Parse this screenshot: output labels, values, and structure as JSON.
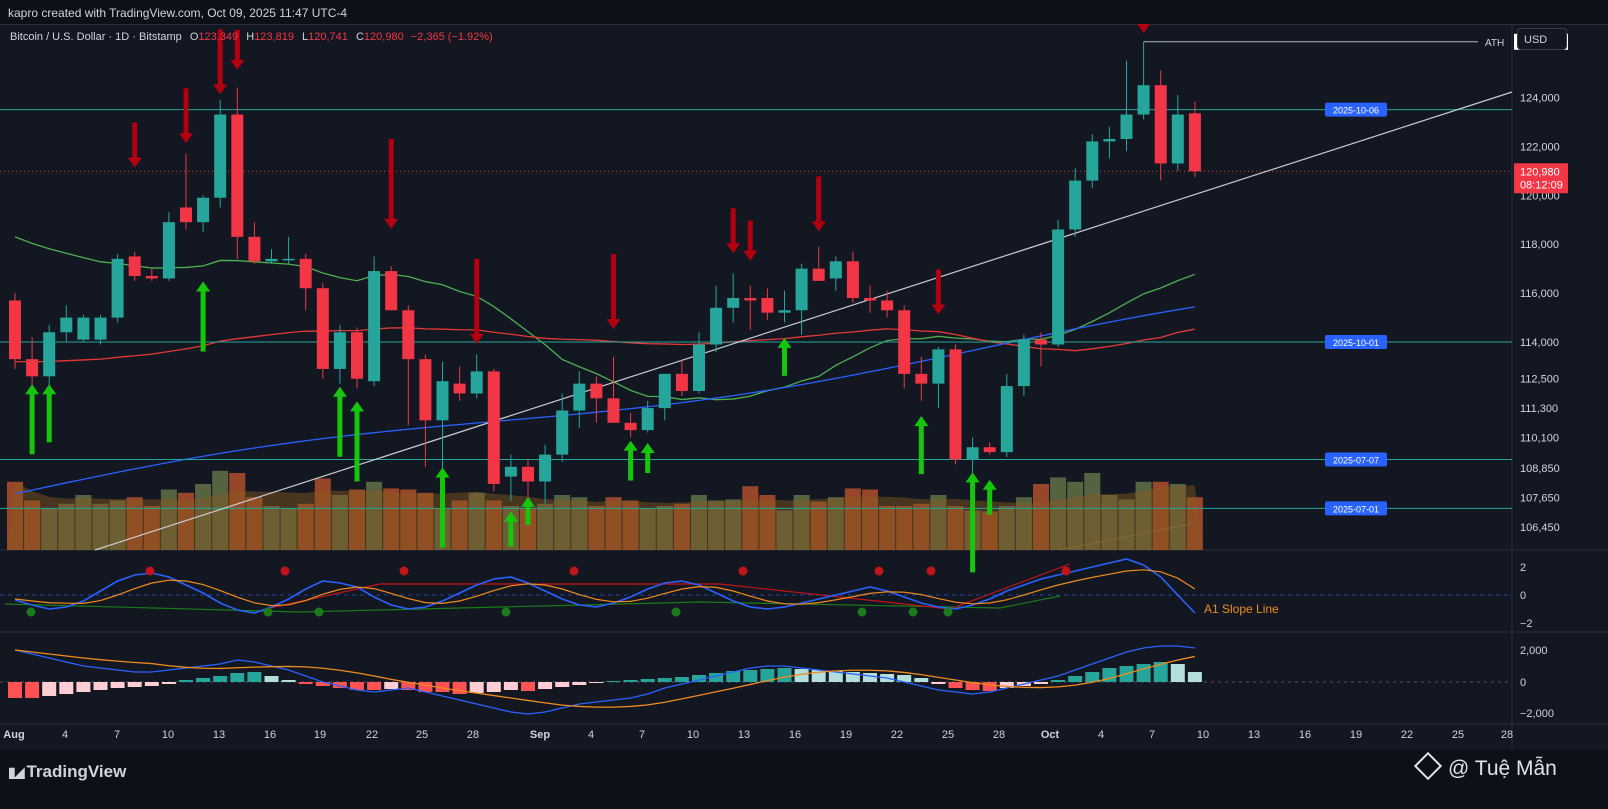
{
  "header": {
    "created_by": "kapro created with TradingView.com, Oct 09, 2025 11:47 UTC-4"
  },
  "legend": {
    "symbol": "Bitcoin / U.S. Dollar · 1D · Bitstamp",
    "o_label": "O",
    "o": "123,349",
    "h_label": "H",
    "h": "123,819",
    "l_label": "L",
    "l": "120,741",
    "c_label": "C",
    "c": "120,980",
    "change": "−2,365 (−1.92%)"
  },
  "currency_button": "USD",
  "ath": {
    "label": "ATH",
    "value": "126,272"
  },
  "current_price": {
    "value": "120,980",
    "countdown": "08:12:09"
  },
  "level_labels": [
    {
      "label": "2025-10-06",
      "price": 123500
    },
    {
      "label": "2025-10-01",
      "price": 114000
    },
    {
      "label": "2025-07-07",
      "price": 109200
    },
    {
      "label": "2025-07-01",
      "price": 107200
    }
  ],
  "price_axis_ticks": [
    "124,000",
    "122,000",
    "120,000",
    "118,000",
    "116,000",
    "114,000",
    "112,500",
    "111,300",
    "110,100",
    "108,850",
    "107,650",
    "106,450"
  ],
  "osc_axis_ticks": [
    "2",
    "0",
    "−2"
  ],
  "macd_axis_ticks": [
    "2,000",
    "0",
    "−2,000"
  ],
  "osc_label": "A1 Slope Line",
  "x_axis_ticks": [
    "Aug",
    "4",
    "7",
    "10",
    "13",
    "16",
    "19",
    "22",
    "25",
    "28",
    "Sep",
    "4",
    "7",
    "10",
    "13",
    "16",
    "19",
    "22",
    "25",
    "28",
    "Oct",
    "4",
    "7",
    "10",
    "13",
    "16",
    "19",
    "22",
    "25",
    "28"
  ],
  "colors": {
    "up": "#26a69a",
    "down": "#f23645",
    "blue_label": "#2962ff",
    "arrow_down": "#b2000f",
    "arrow_up": "#16c60c"
  },
  "footer": {
    "brand": "TradingView",
    "credit": "@ Tuệ Mẫn"
  },
  "chart_data": {
    "type": "candlestick",
    "title": "Bitcoin / U.S. Dollar · 1D · Bitstamp",
    "ylim": [
      105500,
      127000
    ],
    "candles": [
      {
        "o": 115700,
        "h": 116000,
        "l": 112900,
        "c": 113300
      },
      {
        "o": 113300,
        "h": 114200,
        "l": 112000,
        "c": 112600
      },
      {
        "o": 112600,
        "h": 114700,
        "l": 112200,
        "c": 114400
      },
      {
        "o": 114400,
        "h": 115500,
        "l": 114000,
        "c": 115000
      },
      {
        "o": 114100,
        "h": 115100,
        "l": 114000,
        "c": 115000
      },
      {
        "o": 114100,
        "h": 115100,
        "l": 113900,
        "c": 115000
      },
      {
        "o": 115000,
        "h": 117600,
        "l": 114800,
        "c": 117400
      },
      {
        "o": 117500,
        "h": 117700,
        "l": 116500,
        "c": 116700
      },
      {
        "o": 116700,
        "h": 117000,
        "l": 116500,
        "c": 116600
      },
      {
        "o": 116600,
        "h": 119300,
        "l": 116500,
        "c": 118900
      },
      {
        "o": 119500,
        "h": 121700,
        "l": 118600,
        "c": 118900
      },
      {
        "o": 118900,
        "h": 120000,
        "l": 118500,
        "c": 119900
      },
      {
        "o": 119900,
        "h": 123900,
        "l": 119500,
        "c": 123300
      },
      {
        "o": 123300,
        "h": 124400,
        "l": 117400,
        "c": 118300
      },
      {
        "o": 118300,
        "h": 118900,
        "l": 117200,
        "c": 117300
      },
      {
        "o": 117300,
        "h": 117800,
        "l": 117200,
        "c": 117400
      },
      {
        "o": 117400,
        "h": 118300,
        "l": 117200,
        "c": 117400
      },
      {
        "o": 117400,
        "h": 117600,
        "l": 115300,
        "c": 116200
      },
      {
        "o": 116200,
        "h": 116400,
        "l": 112500,
        "c": 112900
      },
      {
        "o": 112900,
        "h": 114700,
        "l": 112300,
        "c": 114400
      },
      {
        "o": 114400,
        "h": 114600,
        "l": 112100,
        "c": 112500
      },
      {
        "o": 112400,
        "h": 117500,
        "l": 112200,
        "c": 116900
      },
      {
        "o": 116900,
        "h": 117100,
        "l": 115300,
        "c": 115300
      },
      {
        "o": 115300,
        "h": 115500,
        "l": 110600,
        "c": 113300
      },
      {
        "o": 113300,
        "h": 113500,
        "l": 108900,
        "c": 110800
      },
      {
        "o": 110800,
        "h": 113200,
        "l": 108500,
        "c": 112400
      },
      {
        "o": 112300,
        "h": 113000,
        "l": 111600,
        "c": 111900
      },
      {
        "o": 111900,
        "h": 113500,
        "l": 111700,
        "c": 112800
      },
      {
        "o": 112800,
        "h": 112900,
        "l": 107900,
        "c": 108200
      },
      {
        "o": 108500,
        "h": 109400,
        "l": 107500,
        "c": 108900
      },
      {
        "o": 108900,
        "h": 109200,
        "l": 107500,
        "c": 108300
      },
      {
        "o": 108300,
        "h": 109800,
        "l": 107400,
        "c": 109400
      },
      {
        "o": 109400,
        "h": 111900,
        "l": 109100,
        "c": 111200
      },
      {
        "o": 111200,
        "h": 112800,
        "l": 110500,
        "c": 112300
      },
      {
        "o": 112300,
        "h": 112600,
        "l": 110700,
        "c": 111700
      },
      {
        "o": 111700,
        "h": 113400,
        "l": 110800,
        "c": 110700
      },
      {
        "o": 110700,
        "h": 111100,
        "l": 110100,
        "c": 110400
      },
      {
        "o": 110400,
        "h": 111600,
        "l": 110300,
        "c": 111300
      },
      {
        "o": 111300,
        "h": 112700,
        "l": 110800,
        "c": 112700
      },
      {
        "o": 112700,
        "h": 113300,
        "l": 111800,
        "c": 112000
      },
      {
        "o": 112000,
        "h": 114400,
        "l": 111900,
        "c": 113900
      },
      {
        "o": 113900,
        "h": 116300,
        "l": 113600,
        "c": 115400
      },
      {
        "o": 115400,
        "h": 116800,
        "l": 114800,
        "c": 115800
      },
      {
        "o": 115800,
        "h": 116300,
        "l": 114500,
        "c": 115700
      },
      {
        "o": 115800,
        "h": 116200,
        "l": 114900,
        "c": 115200
      },
      {
        "o": 115200,
        "h": 116100,
        "l": 114800,
        "c": 115300
      },
      {
        "o": 115300,
        "h": 117200,
        "l": 114300,
        "c": 117000
      },
      {
        "o": 117000,
        "h": 117900,
        "l": 116500,
        "c": 116500
      },
      {
        "o": 116600,
        "h": 117500,
        "l": 116100,
        "c": 117300
      },
      {
        "o": 117300,
        "h": 117700,
        "l": 115600,
        "c": 115800
      },
      {
        "o": 115800,
        "h": 116300,
        "l": 115200,
        "c": 115700
      },
      {
        "o": 115700,
        "h": 116100,
        "l": 115000,
        "c": 115300
      },
      {
        "o": 115300,
        "h": 115500,
        "l": 112100,
        "c": 112700
      },
      {
        "o": 112700,
        "h": 113400,
        "l": 111600,
        "c": 112300
      },
      {
        "o": 112300,
        "h": 113800,
        "l": 111300,
        "c": 113700
      },
      {
        "o": 113700,
        "h": 113900,
        "l": 109000,
        "c": 109200
      },
      {
        "o": 109200,
        "h": 110100,
        "l": 108600,
        "c": 109700
      },
      {
        "o": 109700,
        "h": 109900,
        "l": 109400,
        "c": 109500
      },
      {
        "o": 109500,
        "h": 112700,
        "l": 109300,
        "c": 112200
      },
      {
        "o": 112200,
        "h": 114300,
        "l": 111800,
        "c": 114100
      },
      {
        "o": 114100,
        "h": 114400,
        "l": 113000,
        "c": 113900
      },
      {
        "o": 113900,
        "h": 119000,
        "l": 113800,
        "c": 118600
      },
      {
        "o": 118600,
        "h": 121100,
        "l": 118300,
        "c": 120600
      },
      {
        "o": 120600,
        "h": 122500,
        "l": 120300,
        "c": 122200
      },
      {
        "o": 122200,
        "h": 122800,
        "l": 121500,
        "c": 122300
      },
      {
        "o": 122300,
        "h": 125500,
        "l": 121800,
        "c": 123300
      },
      {
        "o": 123300,
        "h": 126272,
        "l": 123100,
        "c": 124500
      },
      {
        "o": 124500,
        "h": 125100,
        "l": 120600,
        "c": 121300
      },
      {
        "o": 121300,
        "h": 124100,
        "l": 121000,
        "c": 123300
      },
      {
        "o": 123349,
        "h": 123819,
        "l": 120741,
        "c": 120980
      }
    ],
    "volume": [
      62,
      45,
      38,
      42,
      50,
      42,
      45,
      48,
      40,
      55,
      52,
      60,
      72,
      70,
      48,
      40,
      38,
      42,
      65,
      50,
      55,
      62,
      56,
      55,
      52,
      38,
      45,
      52,
      45,
      40,
      38,
      42,
      50,
      48,
      40,
      48,
      45,
      38,
      40,
      42,
      50,
      45,
      46,
      58,
      50,
      36,
      50,
      44,
      48,
      56,
      55,
      40,
      40,
      42,
      50,
      40,
      36,
      35,
      40,
      48,
      60,
      66,
      62,
      70,
      50,
      46,
      62,
      62,
      60,
      48
    ]
  }
}
